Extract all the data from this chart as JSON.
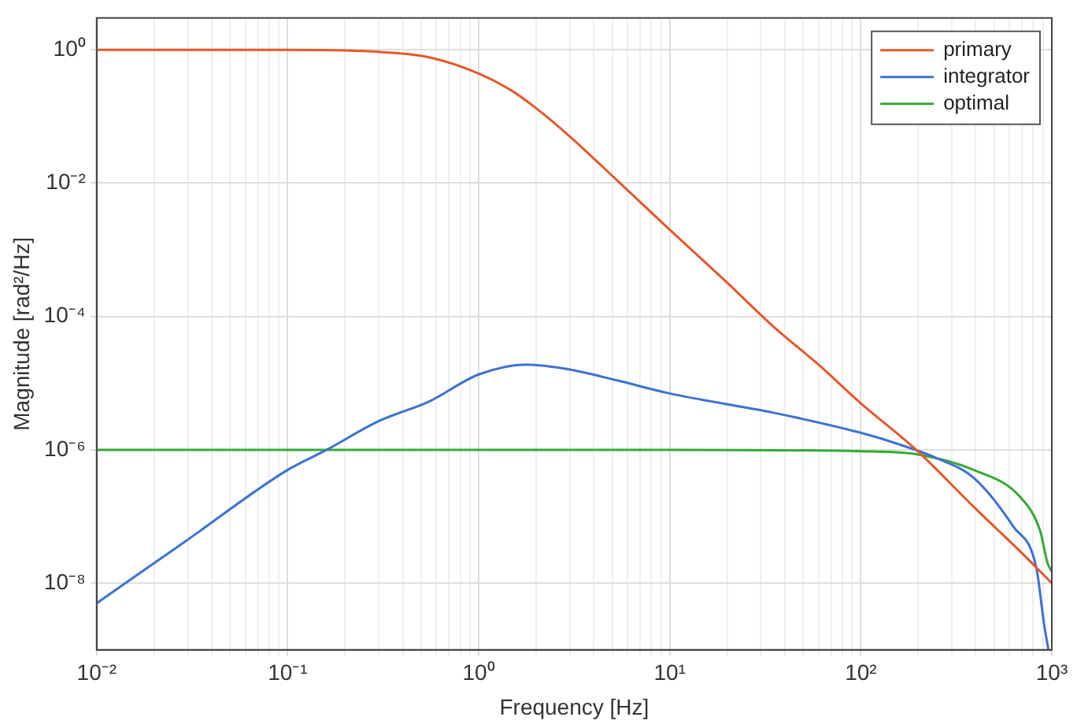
{
  "chart_data": {
    "type": "line",
    "xlabel": "Frequency [Hz]",
    "ylabel": "Magnitude [rad²/Hz]",
    "log": "xy",
    "grid": true,
    "legend": "top right",
    "line_style": "solid",
    "marker": "none",
    "xlim": [
      0.01,
      1000
    ],
    "ylim": [
      1e-09,
      3
    ],
    "xticks": [
      {
        "value": 0.01,
        "label": "10⁻²"
      },
      {
        "value": 0.02,
        "label": null
      },
      {
        "value": 0.03,
        "label": null
      },
      {
        "value": 0.04,
        "label": null
      },
      {
        "value": 0.05,
        "label": null
      },
      {
        "value": 0.06,
        "label": null
      },
      {
        "value": 0.07,
        "label": null
      },
      {
        "value": 0.08,
        "label": null
      },
      {
        "value": 0.09,
        "label": null
      },
      {
        "value": 0.1,
        "label": "10⁻¹"
      },
      {
        "value": 0.2,
        "label": null
      },
      {
        "value": 0.3,
        "label": null
      },
      {
        "value": 0.4,
        "label": null
      },
      {
        "value": 0.5,
        "label": null
      },
      {
        "value": 0.6,
        "label": null
      },
      {
        "value": 0.7,
        "label": null
      },
      {
        "value": 0.8,
        "label": null
      },
      {
        "value": 0.9,
        "label": null
      },
      {
        "value": 1,
        "label": "10⁰"
      },
      {
        "value": 2,
        "label": null
      },
      {
        "value": 3,
        "label": null
      },
      {
        "value": 4,
        "label": null
      },
      {
        "value": 5,
        "label": null
      },
      {
        "value": 6,
        "label": null
      },
      {
        "value": 7,
        "label": null
      },
      {
        "value": 8,
        "label": null
      },
      {
        "value": 9,
        "label": null
      },
      {
        "value": 10,
        "label": "10¹"
      },
      {
        "value": 20,
        "label": null
      },
      {
        "value": 30,
        "label": null
      },
      {
        "value": 40,
        "label": null
      },
      {
        "value": 50,
        "label": null
      },
      {
        "value": 60,
        "label": null
      },
      {
        "value": 70,
        "label": null
      },
      {
        "value": 80,
        "label": null
      },
      {
        "value": 90,
        "label": null
      },
      {
        "value": 100,
        "label": "10²"
      },
      {
        "value": 200,
        "label": null
      },
      {
        "value": 300,
        "label": null
      },
      {
        "value": 400,
        "label": null
      },
      {
        "value": 500,
        "label": null
      },
      {
        "value": 600,
        "label": null
      },
      {
        "value": 700,
        "label": null
      },
      {
        "value": 800,
        "label": null
      },
      {
        "value": 900,
        "label": null
      },
      {
        "value": 1000,
        "label": "10³"
      }
    ],
    "yticks": [
      {
        "value": 1e-08,
        "label": "10⁻⁸"
      },
      {
        "value": 1e-06,
        "label": "10⁻⁶"
      },
      {
        "value": 0.0001,
        "label": "10⁻⁴"
      },
      {
        "value": 0.01,
        "label": "10⁻²"
      },
      {
        "value": 1,
        "label": "10⁰"
      }
    ],
    "series": [
      {
        "name": "primary",
        "color": "#e5582b",
        "x": [
          0.01,
          0.1,
          0.2,
          0.3,
          0.55,
          1,
          1.5,
          1.95,
          3,
          5.3,
          10,
          20,
          35,
          60,
          100,
          195,
          400,
          700,
          1000
        ],
        "values": [
          1,
          1,
          0.98,
          0.93,
          0.77,
          0.44,
          0.24,
          0.14,
          0.05,
          0.011,
          0.002,
          0.00032,
          7e-05,
          1.9e-05,
          5e-06,
          1e-06,
          1.3e-07,
          2.8e-08,
          1e-08
        ]
      },
      {
        "name": "integrator",
        "color": "#3d72d0",
        "x": [
          0.01,
          0.03,
          0.1,
          0.16,
          0.3,
          0.55,
          1,
          1.78,
          3,
          5.3,
          10,
          35,
          100,
          160,
          250,
          390,
          630,
          830,
          910,
          960
        ],
        "values": [
          5e-09,
          4.5e-08,
          5e-07,
          1e-06,
          2.7e-06,
          5.3e-06,
          1.35e-05,
          1.9e-05,
          1.6e-05,
          1.1e-05,
          7e-06,
          3.6e-06,
          1.8e-06,
          1.2e-06,
          7.5e-07,
          3.8e-07,
          7e-08,
          1.7e-08,
          2.5e-09,
          1e-09
        ]
      },
      {
        "name": "optimal",
        "color": "#35a935",
        "x": [
          0.01,
          1,
          10,
          100,
          200,
          390,
          690,
          870,
          950,
          1000
        ],
        "values": [
          1e-06,
          1e-06,
          1e-06,
          9.5e-07,
          8.5e-07,
          5e-07,
          1.9e-07,
          6e-08,
          2e-08,
          1.5e-08
        ]
      }
    ]
  }
}
